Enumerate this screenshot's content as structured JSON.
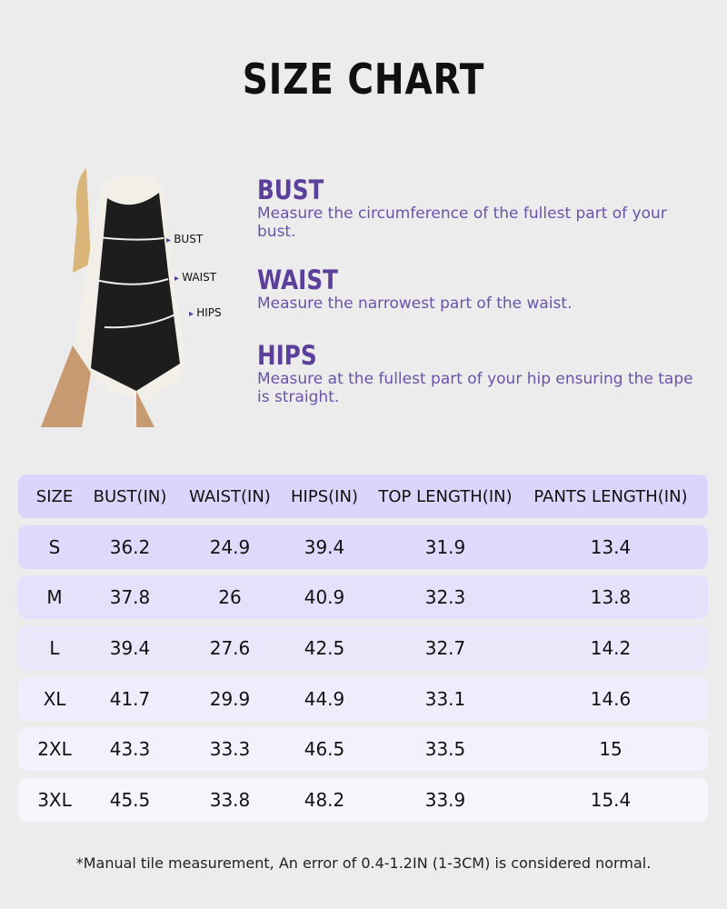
{
  "title": "SIZE CHART",
  "figure_labels": {
    "bust": "BUST",
    "waist": "WAIST",
    "hips": "HIPS"
  },
  "measurements": [
    {
      "name": "BUST",
      "desc": "Measure the circumference of the fullest part of your bust."
    },
    {
      "name": "WAIST",
      "desc": "Measure the narrowest part of the waist."
    },
    {
      "name": "HIPS",
      "desc": "Measure at the fullest part of your hip ensuring the tape is straight."
    }
  ],
  "table": {
    "headers": [
      "SIZE",
      "BUST(IN)",
      "WAIST(IN)",
      "HIPS(IN)",
      "TOP LENGTH(IN)",
      "PANTS LENGTH(IN)"
    ],
    "rows": [
      [
        "S",
        "36.2",
        "24.9",
        "39.4",
        "31.9",
        "13.4"
      ],
      [
        "M",
        "37.8",
        "26",
        "40.9",
        "32.3",
        "13.8"
      ],
      [
        "L",
        "39.4",
        "27.6",
        "42.5",
        "32.7",
        "14.2"
      ],
      [
        "XL",
        "41.7",
        "29.9",
        "44.9",
        "33.1",
        "14.6"
      ],
      [
        "2XL",
        "43.3",
        "33.3",
        "46.5",
        "33.5",
        "15"
      ],
      [
        "3XL",
        "45.5",
        "33.8",
        "48.2",
        "33.9",
        "15.4"
      ]
    ]
  },
  "note": "*Manual tile measurement, An error of 0.4-1.2IN (1-3CM) is considered normal.",
  "colors": {
    "accent": "#5b3f9a",
    "header_bg": "#dcd4fa"
  }
}
